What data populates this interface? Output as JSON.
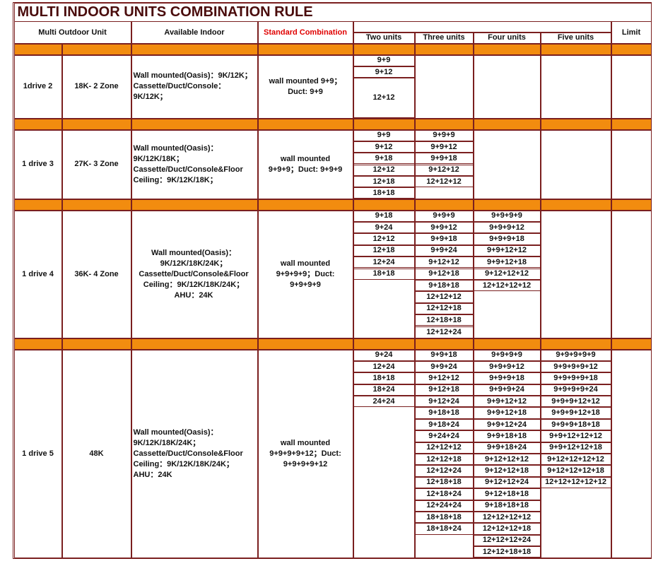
{
  "title": "MULTI INDOOR UNITS COMBINATION RULE",
  "header": {
    "outdoor": "Multi  Outdoor Unit",
    "indoor": "Available Indoor",
    "standard": "Standard Combination",
    "limit": "Limit",
    "units": [
      "Two units",
      "Three units",
      "Four units",
      "Five units"
    ]
  },
  "groups": [
    {
      "drive": "1drive 2",
      "capacity": "18K- 2 Zone",
      "indoor": "Wall mounted(Oasis)：9K/12K；Cassette/Duct/Console：9K/12K；",
      "standard": "wall mounted 9+9；Duct: 9+9",
      "combos": [
        [
          "9+9",
          "9+12",
          "12+12"
        ],
        [],
        [],
        []
      ]
    },
    {
      "drive": "1 drive 3",
      "capacity": "27K- 3 Zone",
      "indoor": "Wall mounted(Oasis)：9K/12K/18K；Cassette/Duct/Console&Floor Ceiling：9K/12K/18K；",
      "standard": "wall mounted 9+9+9；Duct: 9+9+9",
      "combos": [
        [
          "9+9",
          "9+12",
          "9+18",
          "12+12",
          "12+18",
          "18+18"
        ],
        [
          "9+9+9",
          "9+9+12",
          "9+9+18",
          "9+12+12",
          "12+12+12"
        ],
        [],
        []
      ]
    },
    {
      "drive": "1 drive 4",
      "capacity": "36K- 4 Zone",
      "indoor": "Wall mounted(Oasis)：9K/12K/18K/24K；Cassette/Duct/Console&Floor Ceiling：9K/12K/18K/24K；AHU：24K",
      "standard": "wall mounted 9+9+9+9；Duct: 9+9+9+9",
      "combos": [
        [
          "9+18",
          "9+24",
          "12+12",
          "12+18",
          "12+24",
          "18+18"
        ],
        [
          "9+9+9",
          "9+9+12",
          "9+9+18",
          "9+9+24",
          "9+12+12",
          "9+12+18",
          "9+18+18",
          "12+12+12",
          "12+12+18",
          "12+18+18",
          "12+12+24"
        ],
        [
          "9+9+9+9",
          "9+9+9+12",
          "9+9+9+18",
          "9+9+12+12",
          "9+9+12+18",
          "9+12+12+12",
          "12+12+12+12"
        ],
        []
      ]
    },
    {
      "drive": "1 drive 5",
      "capacity": "48K",
      "indoor": "Wall mounted(Oasis)：9K/12K/18K/24K；Cassette/Duct/Console&Floor Ceiling：9K/12K/18K/24K；AHU：24K",
      "standard": "wall mounted 9+9+9+9+12；Duct: 9+9+9+9+12",
      "combos": [
        [
          "9+24",
          "12+24",
          "18+18",
          "18+24",
          "24+24"
        ],
        [
          "9+9+18",
          "9+9+24",
          "9+12+12",
          "9+12+18",
          "9+12+24",
          "9+18+18",
          "9+18+24",
          "9+24+24",
          "12+12+12",
          "12+12+18",
          "12+12+24",
          "12+18+18",
          "12+18+24",
          "12+24+24",
          "18+18+18",
          "18+18+24"
        ],
        [
          "9+9+9+9",
          "9+9+9+12",
          "9+9+9+18",
          "9+9+9+24",
          "9+9+12+12",
          "9+9+12+18",
          "9+9+12+24",
          "9+9+18+18",
          "9+9+18+24",
          "9+12+12+12",
          "9+12+12+18",
          "9+12+12+24",
          "9+12+18+18",
          "9+18+18+18",
          "12+12+12+12",
          "12+12+12+18",
          "12+12+12+24",
          "12+12+18+18"
        ],
        [
          "9+9+9+9+9",
          "9+9+9+9+12",
          "9+9+9+9+18",
          "9+9+9+9+24",
          "9+9+9+12+12",
          "9+9+9+12+18",
          "9+9+9+18+18",
          "9+9+12+12+12",
          "9+9+12+12+18",
          "9+12+12+12+12",
          "9+12+12+12+18",
          "12+12+12+12+12"
        ]
      ]
    }
  ]
}
